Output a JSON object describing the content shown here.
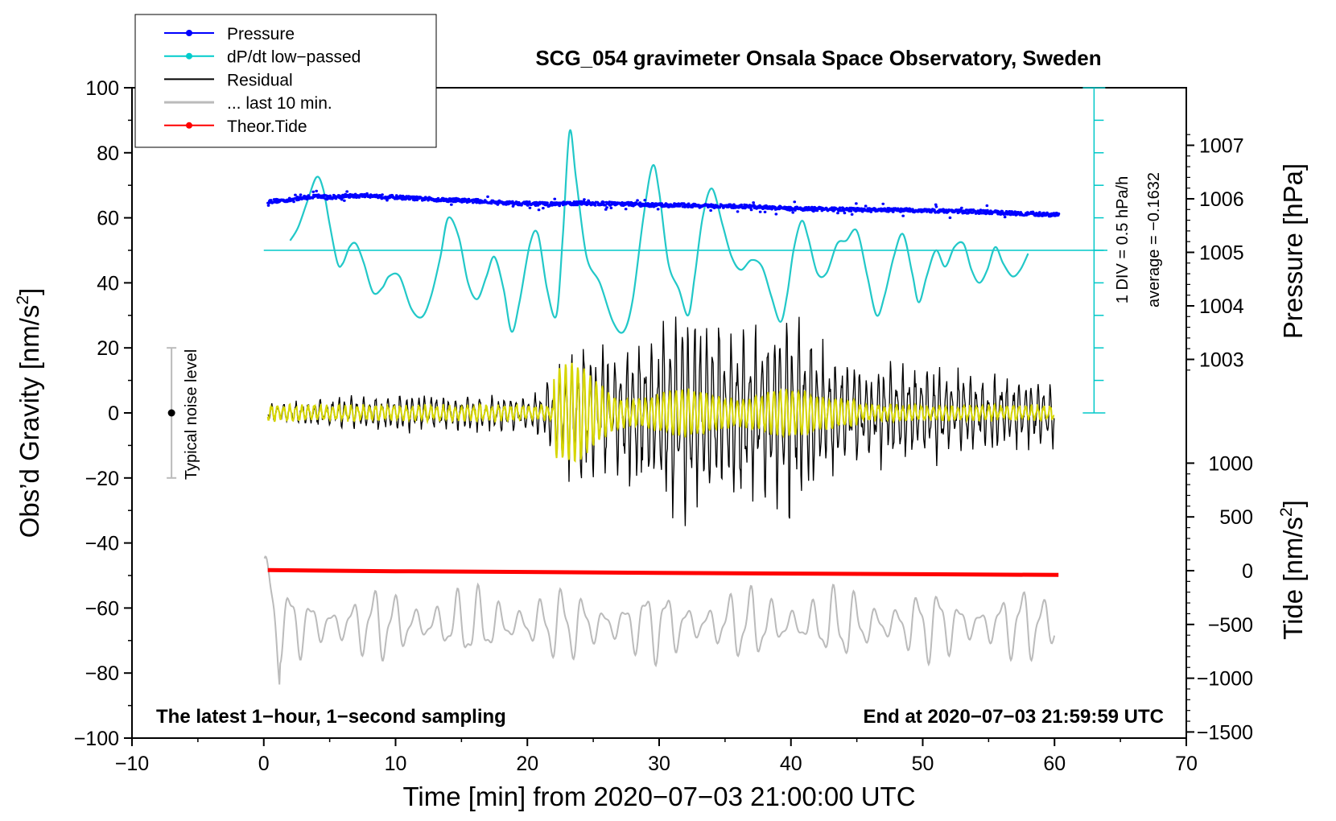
{
  "chart_data": {
    "type": "line",
    "title": "SCG_054 gravimeter Onsala Space Observatory, Sweden",
    "xlabel": "Time [min] from 2020−07−03 21:00:00 UTC",
    "ylabel_left": "Obs’d Gravity [nm/s",
    "ylabel_left_sup": "2",
    "ylabel_left_close": "]",
    "ylabel_right_pressure": "Pressure [hPa]",
    "ylabel_right_tide": "Tide [nm/s",
    "ylabel_right_tide_sup": "2",
    "ylabel_right_tide_close": "]",
    "xlim": [
      -10,
      70
    ],
    "ylim": [
      -100,
      100
    ],
    "x_ticks": [
      {
        "v": -10,
        "label": "−10"
      },
      {
        "v": 0,
        "label": "0"
      },
      {
        "v": 10,
        "label": "10"
      },
      {
        "v": 20,
        "label": "20"
      },
      {
        "v": 30,
        "label": "30"
      },
      {
        "v": 40,
        "label": "40"
      },
      {
        "v": 50,
        "label": "50"
      },
      {
        "v": 60,
        "label": "60"
      },
      {
        "v": 70,
        "label": "70"
      }
    ],
    "y_ticks": [
      {
        "v": 100,
        "label": "100"
      },
      {
        "v": 80,
        "label": "80"
      },
      {
        "v": 60,
        "label": "60"
      },
      {
        "v": 40,
        "label": "40"
      },
      {
        "v": 20,
        "label": "20"
      },
      {
        "v": 0,
        "label": "0"
      },
      {
        "v": -20,
        "label": "−20"
      },
      {
        "v": -40,
        "label": "−40"
      },
      {
        "v": -60,
        "label": "−60"
      },
      {
        "v": -80,
        "label": "−80"
      },
      {
        "v": -100,
        "label": "−100"
      }
    ],
    "pressure_ticks": [
      {
        "v": 1007,
        "label": "1007"
      },
      {
        "v": 1006,
        "label": "1006"
      },
      {
        "v": 1005,
        "label": "1005"
      },
      {
        "v": 1004,
        "label": "1004"
      },
      {
        "v": 1003,
        "label": "1003"
      }
    ],
    "tide_ticks": [
      {
        "v": 1000,
        "label": "1000"
      },
      {
        "v": 500,
        "label": "500"
      },
      {
        "v": 0,
        "label": "0"
      },
      {
        "v": -500,
        "label": "−500"
      },
      {
        "v": -1000,
        "label": "−1000"
      },
      {
        "v": -1500,
        "label": "−1500"
      }
    ],
    "annotations": {
      "bottom_left": "The latest 1−hour, 1−second sampling",
      "bottom_right": "End at 2020−07−03 21:59:59 UTC",
      "scale_div": "1 DIV = 0.5 hPa/h",
      "scale_average": "average = −0.1632",
      "noise_label": "Typical noise level"
    },
    "noise_bar": {
      "x": -7,
      "center": 0,
      "low": -20,
      "high": 20
    },
    "dpdt_zero_level": 50,
    "legend": [
      {
        "name": "Pressure",
        "color": "#0000ff",
        "marker": true
      },
      {
        "name": "dP/dt low−passed",
        "color": "#00cccc",
        "marker": true
      },
      {
        "name": "Residual",
        "color": "#000000",
        "marker": false
      },
      {
        "name": "... last 10 min.",
        "color": "#bbbbbb",
        "marker": false
      },
      {
        "name": "Theor.Tide",
        "color": "#ff0000",
        "marker": true
      }
    ],
    "series": [
      {
        "name": "Pressure (hPa)",
        "color": "#0000ff",
        "x": [
          0.3,
          2,
          3,
          4,
          5,
          6,
          8,
          10,
          12,
          14,
          16,
          18,
          20,
          22,
          24,
          26,
          28,
          30,
          32,
          34,
          36,
          38,
          40,
          42,
          44,
          46,
          48,
          50,
          52,
          54,
          56,
          58,
          60.3
        ],
        "values": [
          1005.95,
          1005.98,
          1006.02,
          1006.05,
          1006.03,
          1006.05,
          1006.06,
          1006.03,
          1006.0,
          1005.98,
          1005.96,
          1005.93,
          1005.91,
          1005.9,
          1005.92,
          1005.91,
          1005.9,
          1005.88,
          1005.88,
          1005.86,
          1005.86,
          1005.84,
          1005.82,
          1005.81,
          1005.8,
          1005.79,
          1005.79,
          1005.78,
          1005.77,
          1005.76,
          1005.74,
          1005.72,
          1005.7
        ]
      },
      {
        "name": "dP/dt low-passed",
        "color": "#00cccc",
        "x": [
          2,
          2.6,
          3.3,
          4,
          4.5,
          5,
          5.6,
          6,
          6.5,
          7,
          7.6,
          8.3,
          9,
          9.5,
          10.3,
          11.2,
          12,
          12.7,
          13.4,
          14,
          14.8,
          15.5,
          16.2,
          16.9,
          17.5,
          18.2,
          18.8,
          19.4,
          20.2,
          20.8,
          21.5,
          22.2,
          22.7,
          23.2,
          23.7,
          24.5,
          25.5,
          26.5,
          27.3,
          28,
          28.8,
          29.5,
          30,
          30.7,
          31.5,
          32.2,
          32.7,
          33.3,
          34,
          34.8,
          35.5,
          36.2,
          37,
          37.8,
          38.5,
          39.2,
          39.7,
          40.2,
          40.8,
          41.3,
          42,
          42.7,
          43.5,
          44.2,
          45,
          45.8,
          46.5,
          47.1,
          47.8,
          48.5,
          49.2,
          49.7,
          50.3,
          51,
          51.7,
          52.4,
          53.1,
          53.7,
          54.3,
          54.9,
          55.5,
          56.1,
          56.8,
          57.4,
          58
        ],
        "values": [
          53,
          57,
          65,
          72.5,
          69,
          58,
          46,
          46,
          51,
          52,
          46,
          37,
          38.5,
          42,
          42,
          32,
          29.5,
          36,
          48,
          60,
          54,
          40,
          35,
          42,
          48,
          38,
          25,
          34,
          52,
          55,
          38,
          30,
          55,
          86.5,
          72,
          48,
          40,
          28,
          25,
          35,
          60,
          76,
          68,
          46,
          38,
          30,
          42,
          60,
          69,
          58,
          48,
          44,
          47,
          45,
          36,
          28,
          36,
          50,
          59,
          54,
          43,
          43,
          52,
          53,
          56,
          42,
          30,
          36,
          48,
          55,
          43,
          34,
          42,
          50,
          45,
          51,
          52,
          44,
          40,
          44,
          51,
          46,
          42,
          44,
          49
        ]
      },
      {
        "name": "Residual envelope (nm/s^2)",
        "color": "#000000",
        "x": [
          0.3,
          5,
          10,
          15,
          20,
          21,
          22,
          23,
          24,
          25,
          26,
          27,
          28,
          29,
          30,
          31,
          32,
          33,
          34,
          35,
          36,
          37,
          38,
          39,
          40,
          41,
          42,
          43,
          44,
          45,
          46,
          47,
          48,
          49,
          50,
          52,
          54,
          56,
          58,
          60
        ],
        "values": [
          3,
          5,
          6,
          6,
          6,
          8,
          15,
          20,
          25,
          24,
          22,
          20,
          25,
          26,
          28,
          36,
          38,
          35,
          33,
          28,
          30,
          32,
          33,
          30,
          37,
          30,
          24,
          20,
          19,
          18,
          17,
          17,
          17,
          16,
          16,
          15,
          14,
          12,
          12,
          11
        ]
      },
      {
        "name": "Theor.Tide (nm/s^2)",
        "color": "#ff0000",
        "x": [
          0.3,
          10,
          20,
          30,
          40,
          50,
          60.3
        ],
        "values": [
          5,
          -5,
          -12,
          -20,
          -27,
          -33,
          -40
        ]
      },
      {
        "name": "... last 10 min.",
        "color": "#bbbbbb",
        "x_range": [
          0,
          60
        ],
        "center": -65,
        "amplitude": 9
      }
    ]
  }
}
